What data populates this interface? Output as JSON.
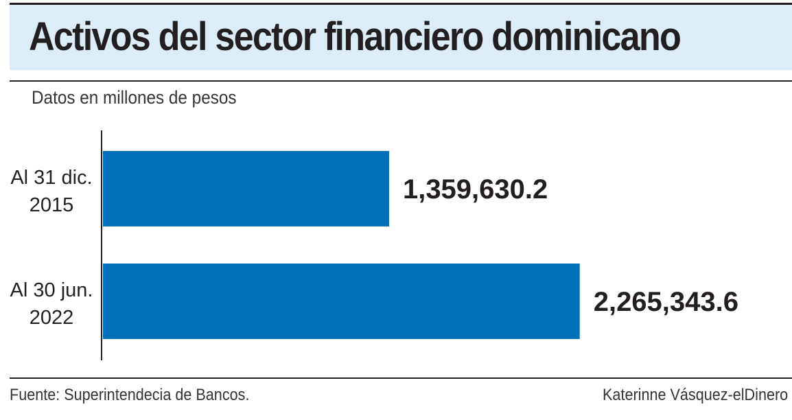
{
  "header": {
    "title": "Activos del sector financiero dominicano",
    "subtitle": "Datos en millones de pesos"
  },
  "footer": {
    "source": "Fuente: Superintendecia de Bancos.",
    "credit": "Katerinne Vásquez-elDinero"
  },
  "colors": {
    "bar": "#0070b8",
    "title_band": "#dcedf7",
    "text": "#231f20"
  },
  "chart_data": {
    "type": "bar",
    "orientation": "horizontal",
    "categories": [
      [
        "Al 31 dic.",
        "2015"
      ],
      [
        "Al 30 jun.",
        "2022"
      ]
    ],
    "values": [
      1359630.2,
      2265343.6
    ],
    "value_labels": [
      "1,359,630.2",
      "2,265,343.6"
    ],
    "title": "Activos del sector financiero dominicano",
    "subtitle": "Datos en millones de pesos",
    "xlim": [
      0,
      3000000
    ],
    "grid": false,
    "legend": "none"
  }
}
